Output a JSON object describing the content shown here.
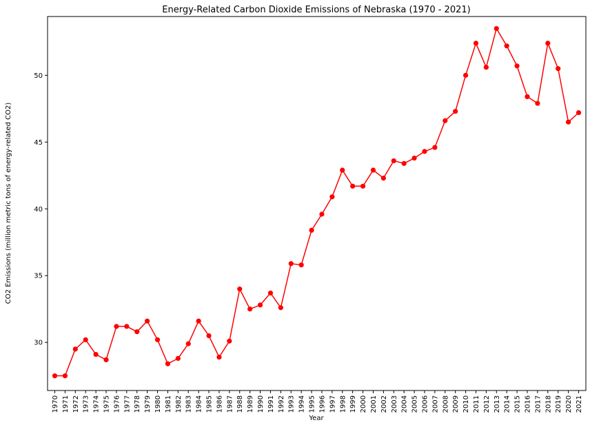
{
  "chart_data": {
    "type": "line",
    "title": "Energy-Related Carbon Dioxide Emissions of Nebraska (1970 - 2021)",
    "xlabel": "Year",
    "ylabel": "CO2 Emissions (million metric tons of energy-related CO2)",
    "ylim": [
      26.4,
      54.4
    ],
    "yticks": [
      30,
      35,
      40,
      45,
      50
    ],
    "grid": false,
    "color": "#ff0000",
    "x": [
      "1970",
      "1971",
      "1972",
      "1973",
      "1974",
      "1975",
      "1976",
      "1977",
      "1978",
      "1979",
      "1980",
      "1981",
      "1982",
      "1983",
      "1984",
      "1985",
      "1986",
      "1987",
      "1988",
      "1989",
      "1990",
      "1991",
      "1992",
      "1993",
      "1994",
      "1995",
      "1996",
      "1997",
      "1998",
      "1999",
      "2000",
      "2001",
      "2002",
      "2003",
      "2004",
      "2005",
      "2006",
      "2007",
      "2008",
      "2009",
      "2010",
      "2011",
      "2012",
      "2013",
      "2014",
      "2015",
      "2016",
      "2017",
      "2018",
      "2019",
      "2020",
      "2021"
    ],
    "values": [
      27.5,
      27.5,
      29.5,
      30.2,
      29.1,
      28.7,
      31.2,
      31.2,
      30.8,
      31.6,
      30.2,
      28.4,
      28.8,
      29.9,
      31.6,
      30.5,
      28.9,
      30.1,
      34.0,
      32.5,
      32.8,
      33.7,
      32.6,
      35.9,
      35.8,
      38.4,
      39.6,
      40.9,
      42.9,
      41.7,
      41.7,
      42.9,
      42.3,
      43.6,
      43.4,
      43.8,
      44.3,
      44.6,
      46.6,
      47.3,
      50.0,
      52.4,
      50.6,
      53.5,
      52.2,
      50.7,
      48.4,
      47.9,
      52.4,
      50.5,
      46.5,
      47.2
    ]
  }
}
